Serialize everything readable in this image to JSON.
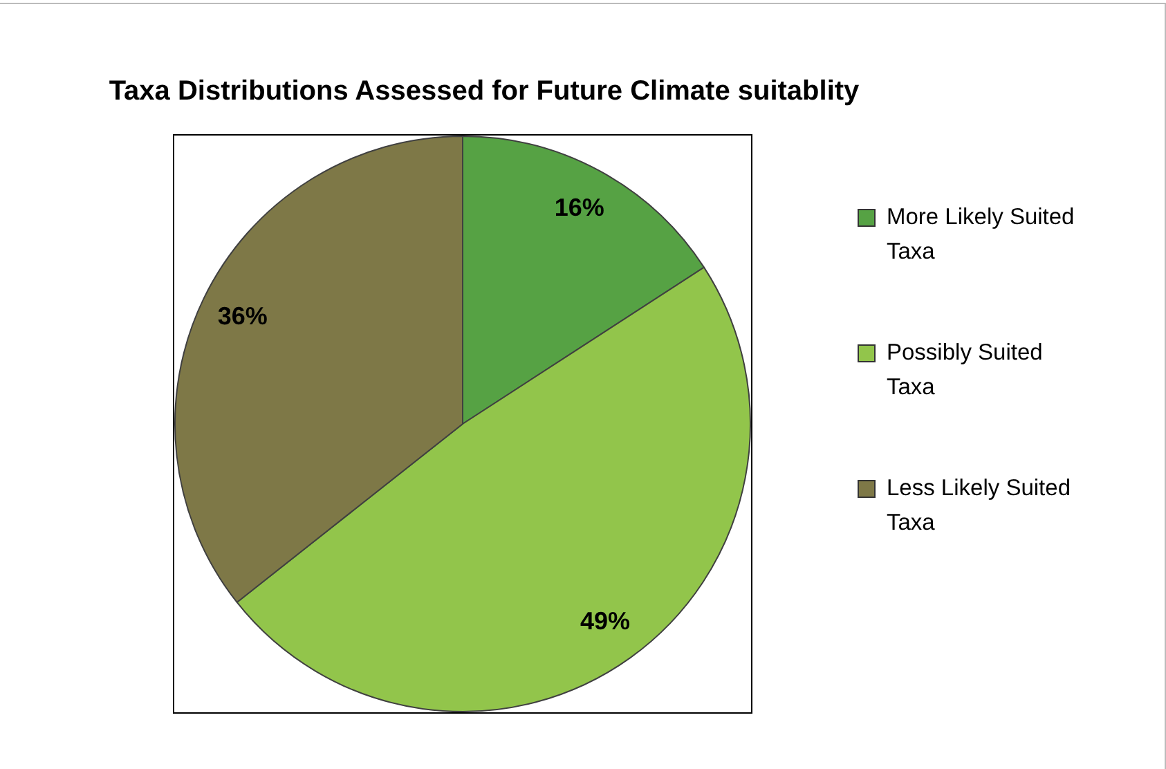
{
  "chart_data": {
    "type": "pie",
    "title": "Taxa Distributions Assessed for Future Climate suitablity",
    "categories": [
      "More Likely Suited Taxa",
      "Possibly Suited Taxa",
      "Less Likely Suited Taxa"
    ],
    "values": [
      16,
      49,
      36
    ],
    "colors": [
      "#56a244",
      "#92c54b",
      "#7e7847"
    ],
    "value_labels": [
      "16%",
      "49%",
      "36%"
    ],
    "legend": "right"
  }
}
